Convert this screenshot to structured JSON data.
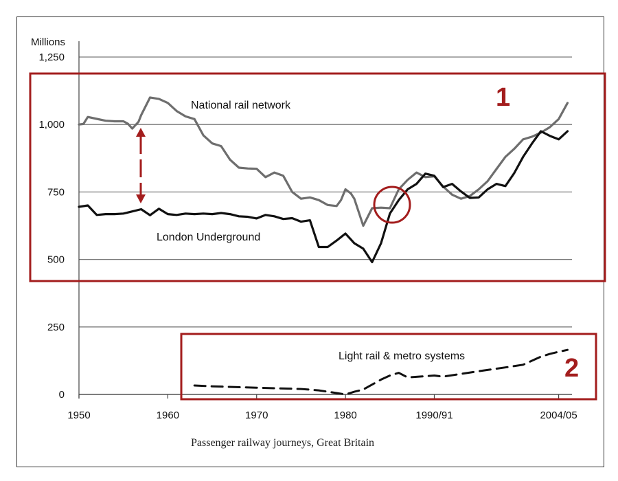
{
  "chart_data": {
    "type": "line",
    "ylabel": "Millions",
    "caption": "Passenger railway journeys, Great Britain",
    "ylim": [
      0,
      1250
    ],
    "yticks": [
      0,
      250,
      500,
      750,
      1000,
      1250
    ],
    "ytick_labels": [
      "0",
      "250",
      "500",
      "750",
      "1,000",
      "1,250"
    ],
    "xlim": [
      1950,
      2005.5
    ],
    "xticks": [
      1950,
      1960,
      1970,
      1980,
      1990,
      2004
    ],
    "xtick_labels": [
      "1950",
      "1960",
      "1970",
      "1980",
      "1990/91",
      "2004/05"
    ],
    "grid": "horizontal",
    "series": [
      {
        "name": "National rail network",
        "color": "#6e6e6e",
        "style": "solid",
        "x": [
          1950,
          1950.5,
          1951,
          1952,
          1953,
          1954,
          1955,
          1955.5,
          1956,
          1956.7,
          1957,
          1958,
          1959,
          1960,
          1961,
          1962,
          1963,
          1964,
          1965,
          1966,
          1967,
          1968,
          1969,
          1970,
          1971,
          1972,
          1973,
          1974,
          1975,
          1976,
          1977,
          1978,
          1979,
          1979.5,
          1980,
          1980.6,
          1981,
          1982,
          1983,
          1984,
          1985,
          1986,
          1987,
          1988,
          1989,
          1990,
          1991,
          1992,
          1993,
          1994,
          1995,
          1996,
          1997,
          1998,
          1999,
          2000,
          2001,
          2002,
          2003,
          2004,
          2005
        ],
        "values": [
          1000,
          1002,
          1028,
          1021,
          1014,
          1012,
          1012,
          1003,
          985,
          1010,
          1035,
          1100,
          1095,
          1080,
          1050,
          1030,
          1020,
          960,
          930,
          920,
          870,
          840,
          837,
          836,
          805,
          822,
          810,
          750,
          725,
          730,
          720,
          702,
          698,
          720,
          760,
          745,
          725,
          625,
          690,
          692,
          690,
          760,
          795,
          822,
          805,
          808,
          770,
          740,
          725,
          735,
          760,
          790,
          835,
          880,
          910,
          945,
          955,
          970,
          990,
          1020,
          1080
        ]
      },
      {
        "name": "London Underground",
        "color": "#111111",
        "style": "solid",
        "x": [
          1950,
          1951,
          1952,
          1953,
          1954,
          1955,
          1956,
          1957,
          1958,
          1959,
          1960,
          1961,
          1962,
          1963,
          1964,
          1965,
          1966,
          1967,
          1968,
          1969,
          1970,
          1971,
          1972,
          1973,
          1974,
          1975,
          1976,
          1977,
          1978,
          1979,
          1980,
          1981,
          1982,
          1983,
          1984,
          1985,
          1986,
          1987,
          1988,
          1989,
          1990,
          1991,
          1992,
          1993,
          1994,
          1995,
          1996,
          1997,
          1998,
          1999,
          2000,
          2001,
          2002,
          2003,
          2004,
          2005
        ],
        "values": [
          695,
          700,
          665,
          668,
          668,
          670,
          678,
          686,
          664,
          688,
          668,
          665,
          670,
          668,
          670,
          668,
          672,
          668,
          660,
          658,
          652,
          665,
          660,
          650,
          653,
          640,
          645,
          546,
          546,
          570,
          596,
          560,
          540,
          490,
          560,
          670,
          720,
          760,
          780,
          818,
          810,
          768,
          780,
          752,
          728,
          730,
          760,
          780,
          772,
          820,
          880,
          930,
          975,
          958,
          945,
          975
        ]
      },
      {
        "name": "Light rail & metro systems",
        "color": "#111111",
        "style": "dashed",
        "x": [
          1963,
          1965,
          1970,
          1975,
          1977,
          1979,
          1980,
          1981,
          1982,
          1984,
          1985,
          1986,
          1987,
          1990,
          1991,
          1993,
          1995,
          1998,
          2000,
          2001,
          2002,
          2003,
          2004,
          2005
        ],
        "values": [
          33,
          30,
          25,
          20,
          15,
          5,
          0,
          10,
          18,
          55,
          70,
          80,
          63,
          70,
          66,
          76,
          86,
          100,
          110,
          125,
          140,
          150,
          158,
          165
        ]
      }
    ]
  },
  "series_labels": {
    "national": "National rail network",
    "underground": "London Underground",
    "light_rail": "Light rail & metro systems"
  },
  "annotations": {
    "box1_number": "1",
    "box2_number": "2",
    "color": "#a31d1d"
  }
}
